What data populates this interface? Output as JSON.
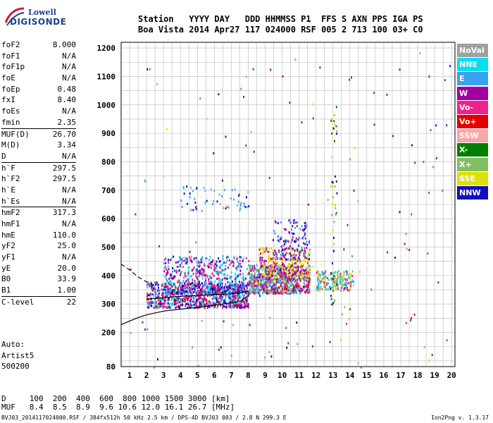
{
  "logo": {
    "line1": "Lowell",
    "line2": "DIGISONDE"
  },
  "header": {
    "line1": "Station   YYYY DAY   DDD HHMMSS P1  FFS S AXN PPS IGA PS",
    "line2": "Boa Vista 2014 Apr27 117 024000 RSF 005 2 713 100 03+ C0"
  },
  "params": [
    [
      {
        "label": "foF2",
        "value": "8.000"
      },
      {
        "label": "foF1",
        "value": "N/A"
      },
      {
        "label": "foF1p",
        "value": "N/A"
      },
      {
        "label": "foE",
        "value": "N/A"
      },
      {
        "label": "foEp",
        "value": "0.48"
      },
      {
        "label": "fxI",
        "value": "8.40"
      },
      {
        "label": "foEs",
        "value": "N/A"
      },
      {
        "label": "fmin",
        "value": "2.35"
      }
    ],
    [
      {
        "label": "MUF(D)",
        "value": "26.70"
      },
      {
        "label": "M(D)",
        "value": "3.34"
      },
      {
        "label": "D",
        "value": "N/A"
      }
    ],
    [
      {
        "label": "h`F",
        "value": "297.5"
      },
      {
        "label": "h`F2",
        "value": "297.5"
      },
      {
        "label": "h`E",
        "value": "N/A"
      },
      {
        "label": "h`Es",
        "value": "N/A"
      }
    ],
    [
      {
        "label": "hmF2",
        "value": "317.3"
      },
      {
        "label": "hmF1",
        "value": "N/A"
      },
      {
        "label": "hmE",
        "value": "110.0"
      },
      {
        "label": "yF2",
        "value": "25.0"
      },
      {
        "label": "yF1",
        "value": "N/A"
      },
      {
        "label": "yE",
        "value": "20.0"
      },
      {
        "label": "B0",
        "value": "33.9"
      },
      {
        "label": "B1",
        "value": "1.00"
      }
    ],
    [
      {
        "label": "C-level",
        "value": "22"
      }
    ]
  ],
  "auto": {
    "line1": "Auto:",
    "line2": "Artist5",
    "line3": "500200"
  },
  "muf_table": {
    "line1": "D     100  200  400  600  800 1000 1500 3000 [km]",
    "line2": "MUF   8.4  8.5  8.9  9.6 10.6 12.0 16.1 26.7 [MHz]"
  },
  "footer": {
    "left": "BVJ03_2014117024000.RSF / 384fx512h 50 kHz 2.5 km / DPS-4D BVJ03 003 / 2.8 N 299.3 E",
    "right": "Ion2Png v. 1.3.17"
  },
  "legend": [
    {
      "label": "NoVal",
      "color": "#a0a0a0"
    },
    {
      "label": "NNE",
      "color": "#00e0f0"
    },
    {
      "label": "E",
      "color": "#3aa0f0"
    },
    {
      "label": "W",
      "color": "#a000a0"
    },
    {
      "label": "Vo-",
      "color": "#f0208c"
    },
    {
      "label": "Vo+",
      "color": "#e00000"
    },
    {
      "label": "SSW",
      "color": "#f8a8a8"
    },
    {
      "label": "X-",
      "color": "#008000"
    },
    {
      "label": "X+",
      "color": "#80c060"
    },
    {
      "label": "SSE",
      "color": "#e0e000"
    },
    {
      "label": "NNW",
      "color": "#1010c0"
    }
  ],
  "chart_data": {
    "type": "scatter",
    "x_ticks": [
      "1",
      "2",
      "3",
      "4",
      "5",
      "6",
      "7",
      "8",
      "9",
      "10",
      "11",
      "12",
      "13",
      "14",
      "15",
      "16",
      "17",
      "18",
      "19",
      "20"
    ],
    "y_ticks": [
      "80",
      "200",
      "300",
      "400",
      "500",
      "600",
      "700",
      "800",
      "900",
      "1000",
      "1100",
      "1200"
    ],
    "xlim": [
      0.5,
      20.2
    ],
    "ylim": [
      80,
      1220
    ],
    "grid": true,
    "legend_placement": "right",
    "clusters": [
      {
        "x": [
          2.0,
          8.0
        ],
        "y": [
          290,
          380
        ],
        "colors": [
          "#a000a0",
          "#f0208c",
          "#e00000",
          "#3aa0f0",
          "#1010c0",
          "#00e0f0"
        ],
        "count": 900
      },
      {
        "x": [
          3.0,
          8.0
        ],
        "y": [
          340,
          470
        ],
        "colors": [
          "#a000a0",
          "#f0208c",
          "#3aa0f0",
          "#00e0f0",
          "#1010c0"
        ],
        "count": 500
      },
      {
        "x": [
          8.0,
          11.6
        ],
        "y": [
          340,
          440
        ],
        "colors": [
          "#a000a0",
          "#f0208c",
          "#e00000",
          "#3aa0f0",
          "#80c060",
          "#00e0f0"
        ],
        "count": 800
      },
      {
        "x": [
          8.6,
          11.6
        ],
        "y": [
          400,
          500
        ],
        "colors": [
          "#e0e000",
          "#e0e000",
          "#a000a0",
          "#f0208c"
        ],
        "count": 300
      },
      {
        "x": [
          9.4,
          11.6
        ],
        "y": [
          460,
          600
        ],
        "colors": [
          "#a000a0",
          "#1010c0",
          "#3aa0f0"
        ],
        "count": 120
      },
      {
        "x": [
          12.0,
          14.2
        ],
        "y": [
          350,
          420
        ],
        "colors": [
          "#80c060",
          "#3aa0f0",
          "#e0e000",
          "#00e0f0",
          "#f0208c"
        ],
        "count": 200
      },
      {
        "x": [
          4.0,
          8.0
        ],
        "y": [
          630,
          720
        ],
        "colors": [
          "#1010c0",
          "#3aa0f0",
          "#00e0f0",
          "#a0a0a0"
        ],
        "count": 60
      },
      {
        "x": [
          12.8,
          13.2
        ],
        "y": [
          300,
          1000
        ],
        "colors": [
          "#80c060",
          "#008000",
          "#e0e000",
          "#1010c0"
        ],
        "count": 50
      },
      {
        "x": [
          1.0,
          20.0
        ],
        "y": [
          80,
          1200
        ],
        "colors": [
          "#f0208c",
          "#008000",
          "#1010c0",
          "#e0e000",
          "#e00000",
          "#a000a0",
          "#3aa0f0",
          "#80c060"
        ],
        "count": 140
      }
    ],
    "curves": [
      {
        "name": "profile",
        "style": "solid",
        "points": [
          [
            0.5,
            228
          ],
          [
            1,
            240
          ],
          [
            1.5,
            252
          ],
          [
            2,
            262
          ],
          [
            3,
            275
          ],
          [
            4,
            282
          ],
          [
            5,
            288
          ],
          [
            6,
            296
          ],
          [
            7,
            304
          ],
          [
            7.6,
            312
          ],
          [
            8,
            330
          ]
        ]
      },
      {
        "name": "extrapolation",
        "style": "dashed",
        "points": [
          [
            0.5,
            440
          ],
          [
            1,
            420
          ],
          [
            1.5,
            395
          ],
          [
            2,
            378
          ],
          [
            2.5,
            365
          ]
        ]
      },
      {
        "name": "trace",
        "style": "solid",
        "points": [
          [
            2,
            318
          ],
          [
            3,
            322
          ],
          [
            4,
            327
          ],
          [
            5,
            330
          ],
          [
            6,
            333
          ],
          [
            7,
            336
          ],
          [
            7.6,
            340
          ],
          [
            8,
            345
          ]
        ]
      }
    ]
  }
}
